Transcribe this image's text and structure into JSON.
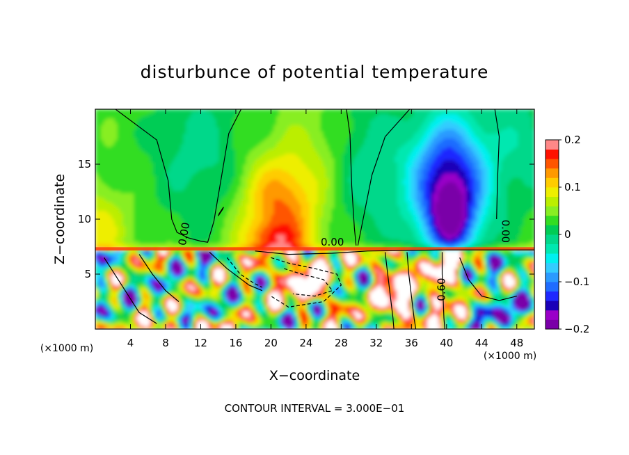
{
  "chart_data": {
    "type": "heatmap",
    "title": "disturbunce of potential temperature",
    "xlabel": "X−coordinate",
    "ylabel": "Z−coordinate",
    "x_unit_label": "(×1000 m)",
    "z_unit_label": "(×1000 m)",
    "footer": "CONTOUR INTERVAL = 3.000E−01",
    "xlim": [
      0,
      50
    ],
    "ylim": [
      0,
      20
    ],
    "x_ticks": [
      4,
      8,
      12,
      16,
      20,
      24,
      28,
      32,
      36,
      40,
      44,
      48
    ],
    "y_ticks": [
      5,
      10,
      15
    ],
    "colorbar": {
      "range": [
        -0.2,
        0.2
      ],
      "tick_labels": [
        "0.2",
        "0.1",
        "0",
        "−0.1",
        "−0.2"
      ],
      "tick_values": [
        0.2,
        0.1,
        0,
        -0.1,
        -0.2
      ],
      "levels": 20,
      "colors": [
        "#7a00a8",
        "#9a00c8",
        "#1a00b8",
        "#1e28ff",
        "#1f6cff",
        "#2a9aff",
        "#33ccff",
        "#00f0f0",
        "#00e8b0",
        "#00d88a",
        "#00cc55",
        "#33dd22",
        "#88ee22",
        "#bbee00",
        "#eeee00",
        "#ffcc00",
        "#ff9900",
        "#ff5500",
        "#ff1100",
        "#ff8888"
      ]
    },
    "contour_labels": [
      "0.00",
      "0.00",
      "0.00",
      "0.60"
    ],
    "shaded_field": {
      "note": "Approximate field value sampled on coarse grid (x: 0..50 km, z: 0..20 km)"
    },
    "features": [
      {
        "x": 40.5,
        "z": 11,
        "value": -0.19
      },
      {
        "x": 40,
        "z": 15,
        "value": -0.12
      },
      {
        "x": 21,
        "z": 12,
        "value": 0.11
      },
      {
        "x": 20.5,
        "z": 8.5,
        "value": 0.16
      },
      {
        "x": 1,
        "z": 9,
        "value": 0.09
      },
      {
        "x": 26,
        "z": 16,
        "value": 0.05
      },
      {
        "x": 12,
        "z": 16,
        "value": -0.01
      },
      {
        "x": 33,
        "z": 15,
        "value": -0.02
      },
      {
        "x": 49,
        "z": 18,
        "value": -0.01
      }
    ]
  }
}
